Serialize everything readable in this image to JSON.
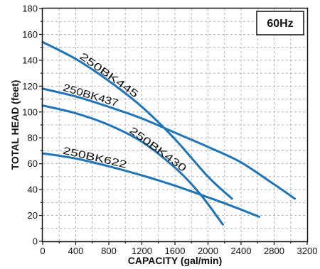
{
  "chart_data": {
    "type": "line",
    "xlabel": "CAPACITY (gal/min)",
    "ylabel": "TOTAL HEAD (feet)",
    "badge": "60Hz",
    "xlim": [
      0,
      3200
    ],
    "ylim": [
      0,
      180
    ],
    "xticks": [
      "0",
      "400",
      "800",
      "1200",
      "1600",
      "2000",
      "2400",
      "2800",
      "3200"
    ],
    "yticks": [
      "0",
      "20",
      "40",
      "60",
      "80",
      "100",
      "120",
      "140",
      "160",
      "180"
    ],
    "grid": true,
    "line_color": "#1f74b8",
    "series": [
      {
        "name": "250BK445",
        "x": [
          0,
          400,
          800,
          1200,
          1600,
          2000,
          2290
        ],
        "y": [
          154,
          141,
          124,
          104,
          79,
          50,
          33
        ]
      },
      {
        "name": "250BK437",
        "x": [
          0,
          400,
          800,
          1200,
          1600,
          2000,
          2400,
          2800,
          3050
        ],
        "y": [
          118,
          112,
          104,
          95,
          84,
          73,
          61,
          44,
          33
        ]
      },
      {
        "name": "250BK430",
        "x": [
          0,
          400,
          800,
          1200,
          1600,
          1900,
          2180
        ],
        "y": [
          105,
          99,
          90,
          77,
          57,
          37,
          13
        ]
      },
      {
        "name": "250BK622",
        "x": [
          0,
          400,
          800,
          1200,
          1600,
          2000,
          2300,
          2620
        ],
        "y": [
          68,
          64,
          58,
          51,
          43,
          34,
          27,
          19
        ]
      }
    ]
  }
}
